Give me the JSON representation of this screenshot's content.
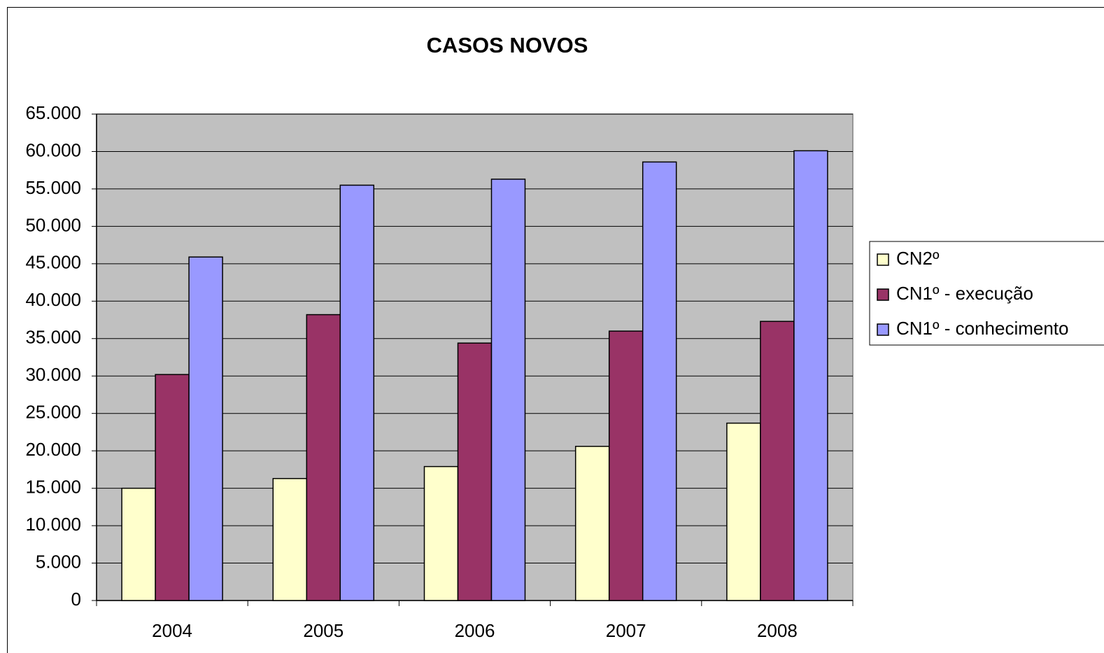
{
  "chart_data": {
    "type": "bar",
    "title": "CASOS NOVOS",
    "categories": [
      "2004",
      "2005",
      "2006",
      "2007",
      "2008"
    ],
    "series": [
      {
        "name": "CN2º",
        "color": "#ffffcc",
        "values": [
          15000,
          16300,
          17900,
          20600,
          23700
        ]
      },
      {
        "name": "CN1º - execução",
        "color": "#993366",
        "values": [
          30200,
          38200,
          34400,
          36000,
          37300
        ]
      },
      {
        "name": "CN1º - conhecimento",
        "color": "#9999ff",
        "values": [
          45900,
          55500,
          56300,
          58600,
          60100
        ]
      }
    ],
    "ylim": [
      0,
      65000
    ],
    "yticks": [
      0,
      {
        "value": 5000,
        "label": "5.000"
      },
      {
        "value": 10000,
        "label": "10.000"
      },
      {
        "value": 15000,
        "label": "15.000"
      },
      {
        "value": 20000,
        "label": "20.000"
      },
      {
        "value": 25000,
        "label": "25.000"
      },
      {
        "value": 30000,
        "label": "30.000"
      },
      {
        "value": 35000,
        "label": "35.000"
      },
      {
        "value": 40000,
        "label": "40.000"
      },
      {
        "value": 45000,
        "label": "45.000"
      },
      {
        "value": 50000,
        "label": "50.000"
      },
      {
        "value": 55000,
        "label": "55.000"
      },
      {
        "value": 60000,
        "label": "60.000"
      },
      {
        "value": 65000,
        "label": "65.000"
      }
    ],
    "grid": true,
    "plot_background": "#c0c0c0",
    "legend": "right"
  }
}
